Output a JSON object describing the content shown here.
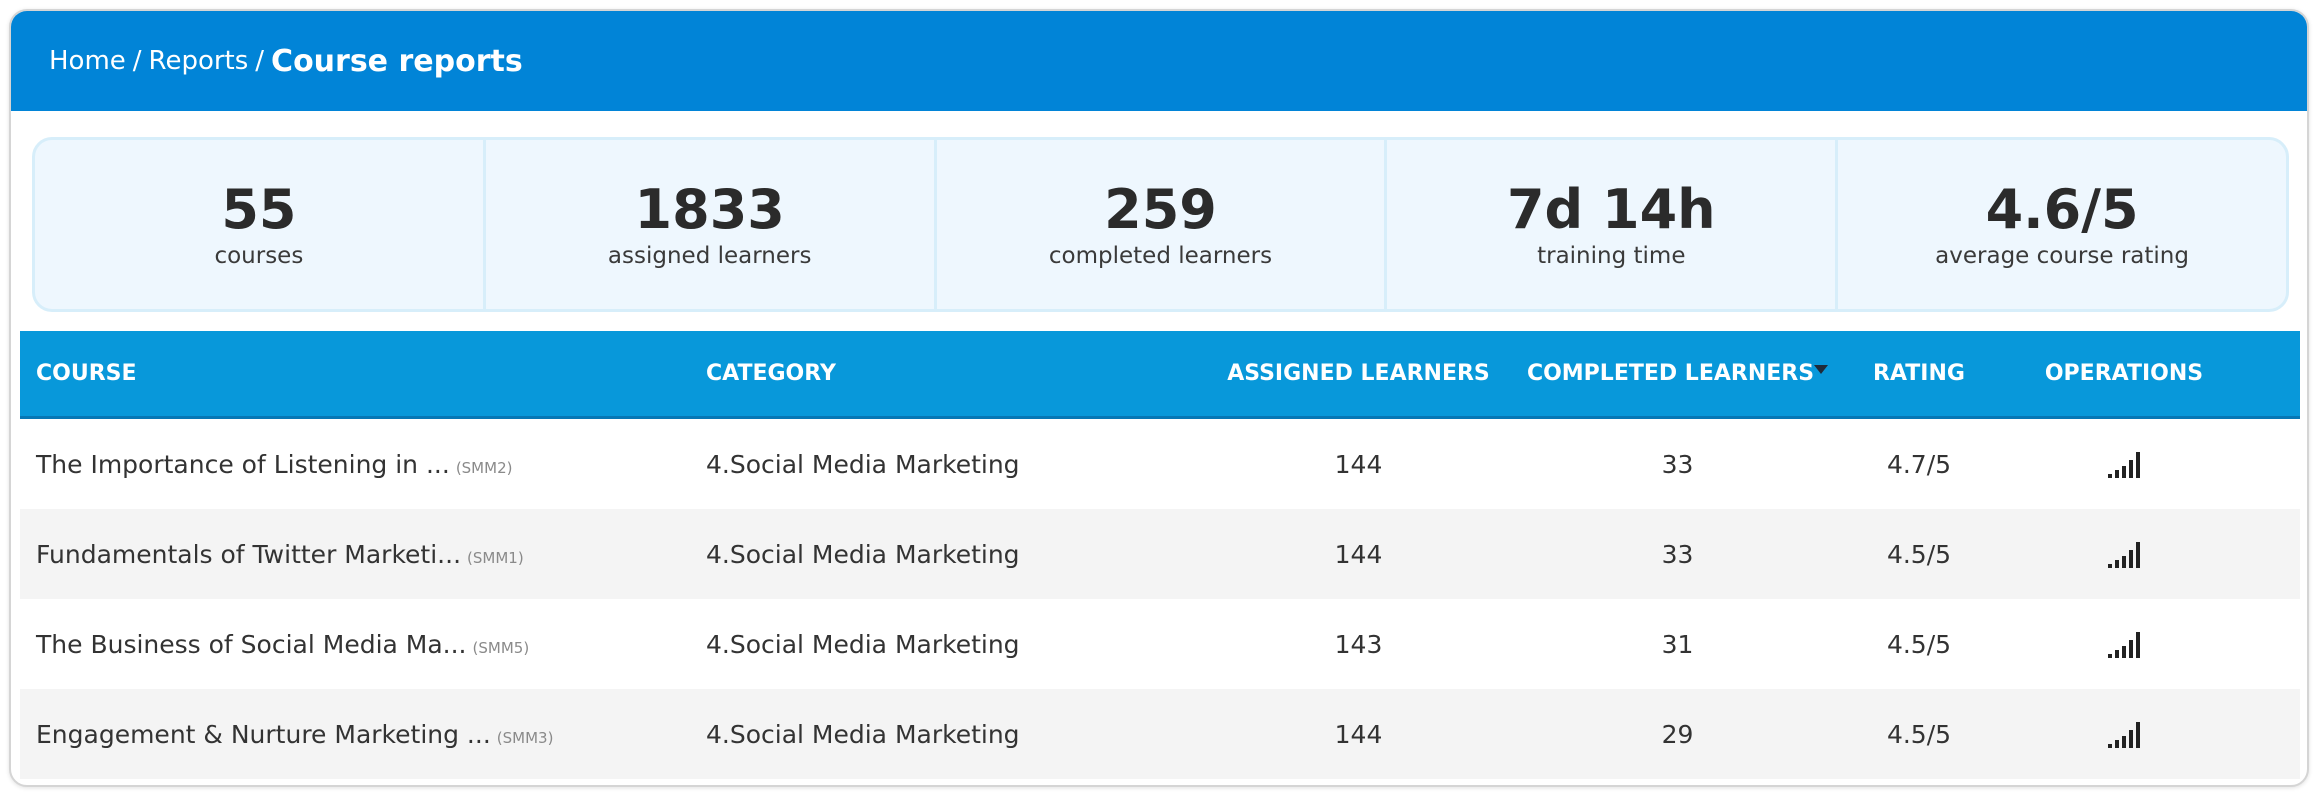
{
  "breadcrumb": {
    "home": "Home",
    "reports": "Reports",
    "current": "Course reports",
    "separator": "/"
  },
  "stats": [
    {
      "value": "55",
      "label": "courses"
    },
    {
      "value": "1833",
      "label": "assigned learners"
    },
    {
      "value": "259",
      "label": "completed learners"
    },
    {
      "value": "7d 14h",
      "label": "training time"
    },
    {
      "value": "4.6/5",
      "label": "average course rating"
    }
  ],
  "table": {
    "headers": {
      "course": "COURSE",
      "category": "CATEGORY",
      "assigned": "ASSIGNED LEARNERS",
      "completed": "COMPLETED LEARNERS",
      "rating": "RATING",
      "operations": "OPERATIONS"
    },
    "sort": {
      "column": "completed",
      "direction": "desc",
      "icon": "sort-desc-icon"
    },
    "rows": [
      {
        "course": "The Importance of Listening in ...",
        "code": "(SMM2)",
        "category": "4.Social Media Marketing",
        "assigned": "144",
        "completed": "33",
        "rating": "4.7/5",
        "icon": "stats-bars-icon"
      },
      {
        "course": "Fundamentals of Twitter Marketi...",
        "code": "(SMM1)",
        "category": "4.Social Media Marketing",
        "assigned": "144",
        "completed": "33",
        "rating": "4.5/5",
        "icon": "stats-bars-icon"
      },
      {
        "course": "The Business of Social Media Ma...",
        "code": "(SMM5)",
        "category": "4.Social Media Marketing",
        "assigned": "143",
        "completed": "31",
        "rating": "4.5/5",
        "icon": "stats-bars-icon"
      },
      {
        "course": "Engagement & Nurture Marketing ...",
        "code": "(SMM3)",
        "category": "4.Social Media Marketing",
        "assigned": "144",
        "completed": "29",
        "rating": "4.5/5",
        "icon": "stats-bars-icon"
      }
    ]
  },
  "colors": {
    "header_bg": "#0184d7",
    "table_header_bg": "#0898da",
    "stats_bg": "#eef7fe",
    "stats_border": "#d7eefa",
    "row_alt_bg": "#f4f4f4"
  }
}
